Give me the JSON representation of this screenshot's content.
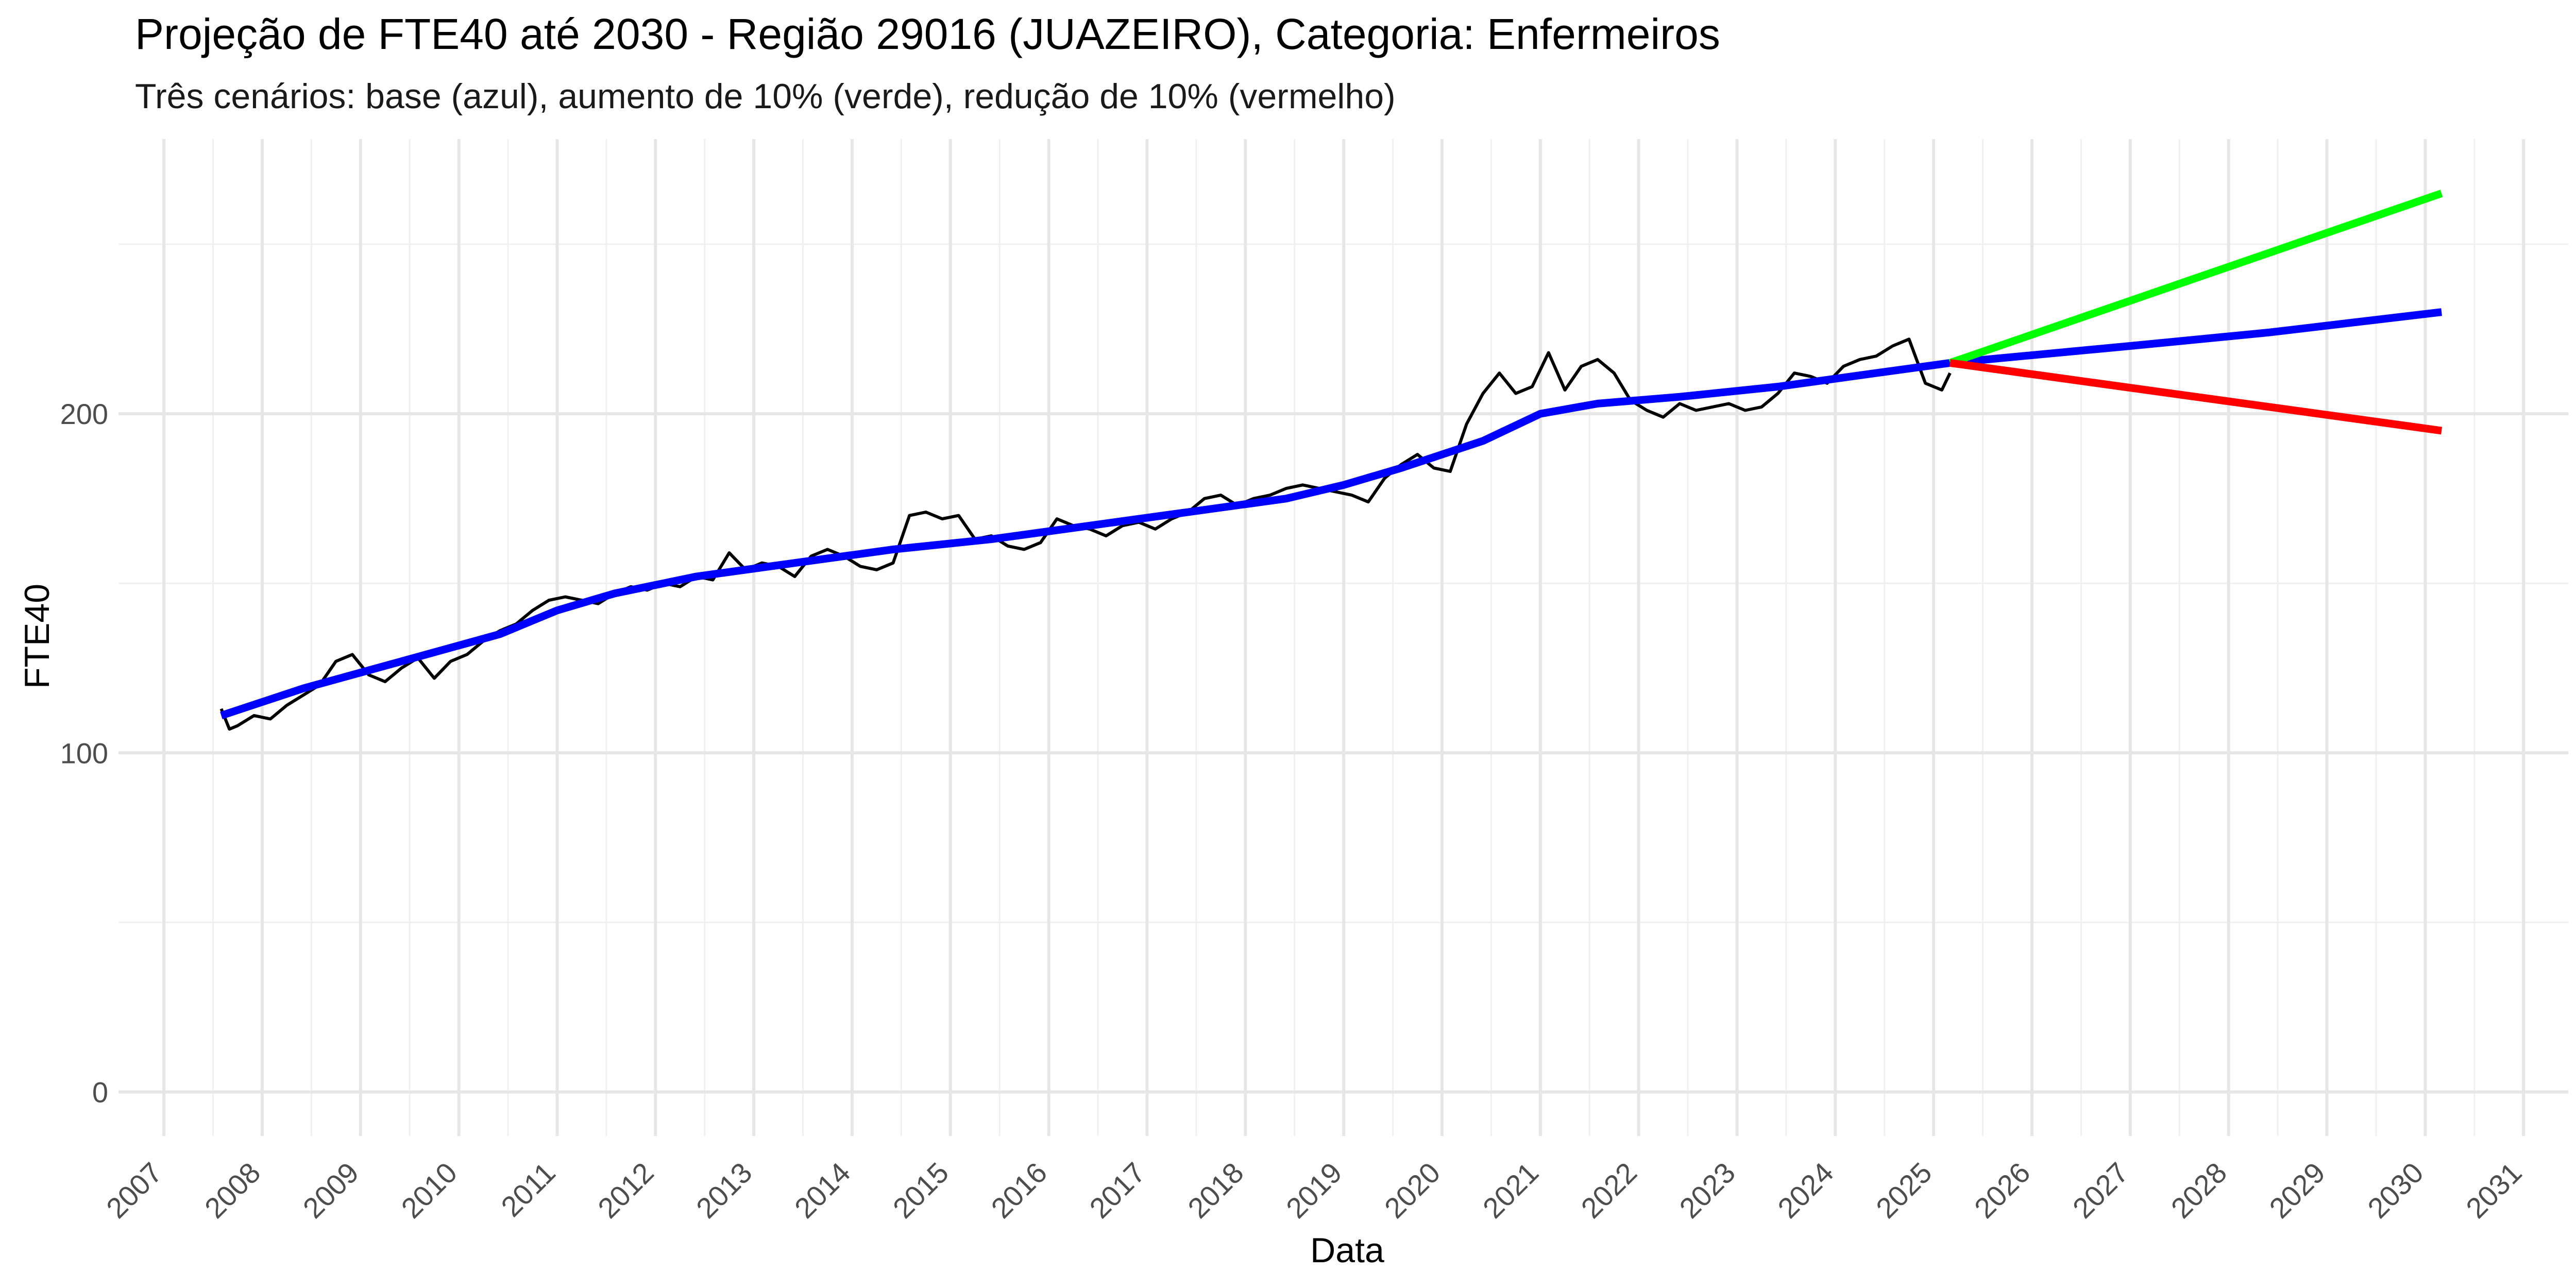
{
  "chart_data": {
    "type": "line",
    "title": "Projeção de FTE40 até 2030 - Região 29016 (JUAZEIRO), Categoria: Enfermeiros",
    "subtitle": "Três cenários: base (azul), aumento de 10% (verde), redução de 10% (vermelho)",
    "xlabel": "Data",
    "ylabel": "FTE40",
    "x_ticks": [
      "2007",
      "2008",
      "2009",
      "2010",
      "2011",
      "2012",
      "2013",
      "2014",
      "2015",
      "2016",
      "2017",
      "2018",
      "2019",
      "2020",
      "2021",
      "2022",
      "2023",
      "2024",
      "2025",
      "2026",
      "2027",
      "2028",
      "2029",
      "2030",
      "2031"
    ],
    "y_ticks": [
      "0",
      "100",
      "200"
    ],
    "xlim": [
      "2006-07-15",
      "2031-06-15"
    ],
    "ylim": [
      -13,
      281
    ],
    "grid": true,
    "legend": "none",
    "series": [
      {
        "color": "#000000",
        "points": [
          [
            "2007-08",
            113
          ],
          [
            "2007-09",
            107
          ],
          [
            "2007-10",
            108
          ],
          [
            "2007-12",
            111
          ],
          [
            "2008-02",
            110
          ],
          [
            "2008-04",
            114
          ],
          [
            "2008-06",
            117
          ],
          [
            "2008-08",
            120
          ],
          [
            "2008-10",
            127
          ],
          [
            "2008-12",
            129
          ],
          [
            "2009-02",
            123
          ],
          [
            "2009-04",
            121
          ],
          [
            "2009-06",
            125
          ],
          [
            "2009-08",
            128
          ],
          [
            "2009-10",
            122
          ],
          [
            "2009-12",
            127
          ],
          [
            "2010-02",
            129
          ],
          [
            "2010-04",
            133
          ],
          [
            "2010-06",
            136
          ],
          [
            "2010-08",
            138
          ],
          [
            "2010-10",
            142
          ],
          [
            "2010-12",
            145
          ],
          [
            "2011-02",
            146
          ],
          [
            "2011-04",
            145
          ],
          [
            "2011-06",
            144
          ],
          [
            "2011-08",
            147
          ],
          [
            "2011-10",
            149
          ],
          [
            "2011-12",
            148
          ],
          [
            "2012-02",
            150
          ],
          [
            "2012-04",
            149
          ],
          [
            "2012-06",
            152
          ],
          [
            "2012-08",
            151
          ],
          [
            "2012-10",
            159
          ],
          [
            "2012-12",
            154
          ],
          [
            "2013-02",
            156
          ],
          [
            "2013-04",
            155
          ],
          [
            "2013-06",
            152
          ],
          [
            "2013-08",
            158
          ],
          [
            "2013-10",
            160
          ],
          [
            "2013-12",
            158
          ],
          [
            "2014-02",
            155
          ],
          [
            "2014-04",
            154
          ],
          [
            "2014-06",
            156
          ],
          [
            "2014-08",
            170
          ],
          [
            "2014-10",
            171
          ],
          [
            "2014-12",
            169
          ],
          [
            "2015-02",
            170
          ],
          [
            "2015-04",
            163
          ],
          [
            "2015-06",
            164
          ],
          [
            "2015-08",
            161
          ],
          [
            "2015-10",
            160
          ],
          [
            "2015-12",
            162
          ],
          [
            "2016-02",
            169
          ],
          [
            "2016-04",
            167
          ],
          [
            "2016-06",
            166
          ],
          [
            "2016-08",
            164
          ],
          [
            "2016-10",
            167
          ],
          [
            "2016-12",
            168
          ],
          [
            "2017-02",
            166
          ],
          [
            "2017-04",
            169
          ],
          [
            "2017-06",
            171
          ],
          [
            "2017-08",
            175
          ],
          [
            "2017-10",
            176
          ],
          [
            "2017-12",
            173
          ],
          [
            "2018-02",
            175
          ],
          [
            "2018-04",
            176
          ],
          [
            "2018-06",
            178
          ],
          [
            "2018-08",
            179
          ],
          [
            "2018-10",
            178
          ],
          [
            "2018-12",
            177
          ],
          [
            "2019-02",
            176
          ],
          [
            "2019-04",
            174
          ],
          [
            "2019-06",
            181
          ],
          [
            "2019-08",
            185
          ],
          [
            "2019-10",
            188
          ],
          [
            "2019-12",
            184
          ],
          [
            "2020-02",
            183
          ],
          [
            "2020-04",
            197
          ],
          [
            "2020-06",
            206
          ],
          [
            "2020-08",
            212
          ],
          [
            "2020-10",
            206
          ],
          [
            "2020-12",
            208
          ],
          [
            "2021-02",
            218
          ],
          [
            "2021-04",
            207
          ],
          [
            "2021-06",
            214
          ],
          [
            "2021-08",
            216
          ],
          [
            "2021-10",
            212
          ],
          [
            "2021-12",
            204
          ],
          [
            "2022-02",
            201
          ],
          [
            "2022-04",
            199
          ],
          [
            "2022-06",
            203
          ],
          [
            "2022-08",
            201
          ],
          [
            "2022-10",
            202
          ],
          [
            "2022-12",
            203
          ],
          [
            "2023-02",
            201
          ],
          [
            "2023-04",
            202
          ],
          [
            "2023-06",
            206
          ],
          [
            "2023-08",
            212
          ],
          [
            "2023-10",
            211
          ],
          [
            "2023-12",
            209
          ],
          [
            "2024-02",
            214
          ],
          [
            "2024-04",
            216
          ],
          [
            "2024-06",
            217
          ],
          [
            "2024-08",
            220
          ],
          [
            "2024-10",
            222
          ],
          [
            "2024-12",
            209
          ],
          [
            "2025-02",
            207
          ],
          [
            "2025-03",
            212
          ]
        ]
      },
      {
        "color": "#0000ff",
        "points": [
          [
            "2007-08",
            111
          ],
          [
            "2008-06",
            119
          ],
          [
            "2009-06",
            127
          ],
          [
            "2010-06",
            135
          ],
          [
            "2011-01",
            142
          ],
          [
            "2011-08",
            147
          ],
          [
            "2012-06",
            152
          ],
          [
            "2013-06",
            156
          ],
          [
            "2014-06",
            160
          ],
          [
            "2015-06",
            163
          ],
          [
            "2016-06",
            167
          ],
          [
            "2017-06",
            171
          ],
          [
            "2018-06",
            175
          ],
          [
            "2019-01",
            179
          ],
          [
            "2019-08",
            184
          ],
          [
            "2020-06",
            192
          ],
          [
            "2021-01",
            200
          ],
          [
            "2021-08",
            203
          ],
          [
            "2022-06",
            205
          ],
          [
            "2023-06",
            208
          ],
          [
            "2024-06",
            212
          ],
          [
            "2025-03",
            215
          ],
          [
            "2027-01",
            220
          ],
          [
            "2028-06",
            224
          ],
          [
            "2030-03",
            230
          ]
        ]
      },
      {
        "color": "#00ff00",
        "points": [
          [
            "2025-03",
            215
          ],
          [
            "2030-03",
            265
          ]
        ]
      },
      {
        "color": "#ff0000",
        "points": [
          [
            "2025-03",
            215
          ],
          [
            "2030-03",
            195
          ]
        ]
      }
    ]
  }
}
